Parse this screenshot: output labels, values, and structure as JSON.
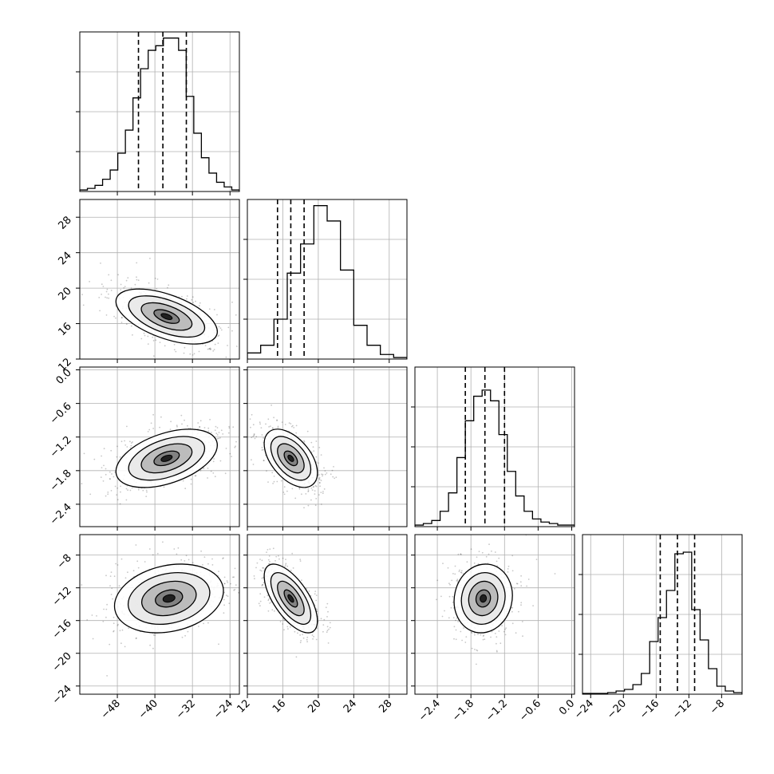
{
  "chart_data": {
    "type": "corner",
    "parameters": [
      {
        "range": [
          -56,
          -22
        ],
        "ticks": [
          -48,
          -40,
          -32,
          -24
        ],
        "tick_labels": [
          "−48",
          "−40",
          "−32",
          "−24"
        ],
        "quantiles": [
          -43.5,
          -38.3,
          -33.3
        ],
        "hist": [
          1,
          2,
          4,
          8,
          14,
          25,
          40,
          61,
          80,
          92,
          95,
          100,
          100,
          92,
          62,
          38,
          22,
          12,
          6,
          3,
          1
        ],
        "hist_ylim": [
          0,
          104
        ]
      },
      {
        "range": [
          12,
          30
        ],
        "ticks": [
          12,
          16,
          20,
          24,
          28
        ],
        "tick_labels": [
          "12",
          "16",
          "20",
          "24",
          "28"
        ],
        "quantiles": [
          15.4,
          16.9,
          18.4
        ],
        "hist": [
          4,
          9,
          26,
          56,
          75,
          100,
          90,
          58,
          22,
          9,
          3,
          1
        ],
        "hist_ylim": [
          0,
          104
        ]
      },
      {
        "range": [
          -2.8,
          0.05
        ],
        "ticks": [
          -2.4,
          -1.8,
          -1.2,
          -0.6,
          0.0
        ],
        "tick_labels": [
          "−2.4",
          "−1.8",
          "−1.2",
          "−0.6",
          "0.0"
        ],
        "quantiles": [
          -1.9,
          -1.55,
          -1.2
        ],
        "hist": [
          1,
          2,
          4,
          10,
          22,
          45,
          69,
          85,
          89,
          82,
          60,
          36,
          20,
          10,
          5,
          3,
          2,
          1,
          1
        ],
        "hist_ylim": [
          0,
          104
        ]
      },
      {
        "range": [
          -25,
          -5.5
        ],
        "ticks": [
          -24,
          -20,
          -16,
          -12,
          -8
        ],
        "tick_labels": [
          "−24",
          "−20",
          "−16",
          "−12",
          "−8"
        ],
        "quantiles": [
          -15.5,
          -13.4,
          -11.3
        ],
        "hist": [
          0.5,
          0.5,
          0.5,
          1,
          2,
          3,
          6,
          13,
          33,
          48,
          65,
          88,
          89,
          53,
          34,
          16,
          5,
          2,
          1
        ],
        "hist_ylim": [
          0,
          100
        ]
      }
    ],
    "pairs": [
      {
        "col": 0,
        "row": 1,
        "mean": [
          -37.5,
          16.8
        ],
        "sd": [
          5.4,
          1.55
        ],
        "rho": -0.55
      },
      {
        "col": 0,
        "row": 2,
        "mean": [
          -37.5,
          -1.58
        ],
        "sd": [
          5.4,
          0.26
        ],
        "rho": 0.45
      },
      {
        "col": 1,
        "row": 2,
        "mean": [
          16.9,
          -1.58
        ],
        "sd": [
          1.5,
          0.26
        ],
        "rho": -0.5
      },
      {
        "col": 0,
        "row": 3,
        "mean": [
          -37.0,
          -13.3
        ],
        "sd": [
          5.8,
          2.1
        ],
        "rho": 0.22
      },
      {
        "col": 1,
        "row": 3,
        "mean": [
          16.9,
          -13.3
        ],
        "sd": [
          1.5,
          2.1
        ],
        "rho": -0.65
      },
      {
        "col": 2,
        "row": 3,
        "mean": [
          -1.58,
          -13.3
        ],
        "sd": [
          0.26,
          2.1
        ],
        "rho": 0.08
      }
    ],
    "grid": true,
    "contour_levels_sigma": [
      0.5,
      1.0,
      1.5,
      2.0
    ]
  }
}
